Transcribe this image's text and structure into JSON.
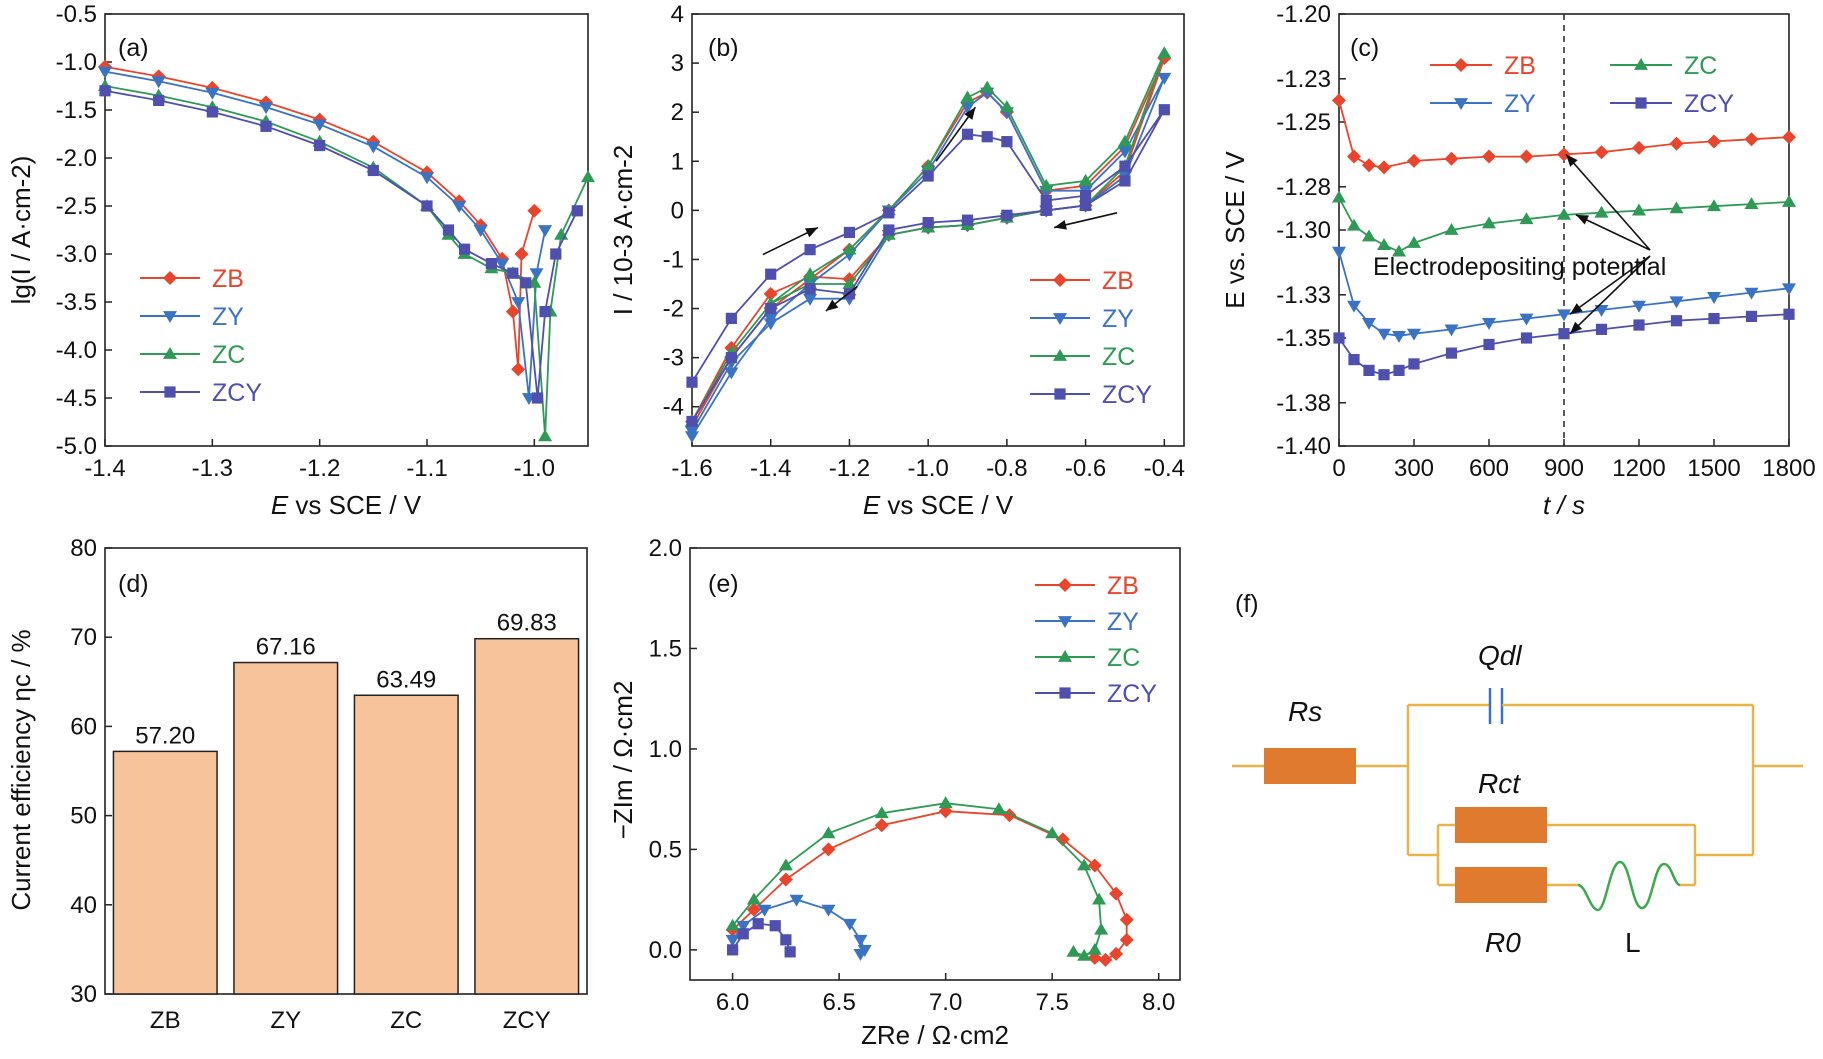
{
  "colors": {
    "ZB": "#e8452c",
    "ZY": "#3b73c4",
    "ZC": "#2e9a55",
    "ZCY": "#4f4fae",
    "bar": "#f7c39a",
    "component": "#e07a2e",
    "wire": "#e9b347",
    "inductor": "#3aaa4c"
  },
  "panels": {
    "a": {
      "label": "(a)",
      "xlabel_e": "E",
      "xlabel_rest": " vs SCE / V",
      "ylabel": "lg(I / A·cm-2)"
    },
    "b": {
      "label": "(b)",
      "xlabel_e": "E",
      "xlabel_rest": " vs SCE / V",
      "ylabel": "I / 10-3 A·cm-2"
    },
    "c": {
      "label": "(c)",
      "xlabel": "t / s",
      "ylabel": "E vs. SCE / V",
      "annotation": "Electrodepositing potential"
    },
    "d": {
      "label": "(d)",
      "ylabel": "Current efficiency ηc / %"
    },
    "e": {
      "label": "(e)",
      "xlabel": "ZRe / Ω·cm2",
      "ylabel": "−ZIm / Ω·cm2"
    },
    "f": {
      "label": "(f)",
      "Rs": "Rs",
      "Qdl": "Qdl",
      "Rct": "Rct",
      "R0": "R0",
      "L": "L"
    }
  },
  "chart_data": [
    {
      "id": "a",
      "type": "line",
      "xlim": [
        -1.4,
        -0.95
      ],
      "ylim": [
        -5.0,
        -0.5
      ],
      "xticks": [
        -1.4,
        -1.3,
        -1.2,
        -1.1,
        -1.0
      ],
      "yticks": [
        -5.0,
        -4.5,
        -4.0,
        -3.5,
        -3.0,
        -2.5,
        -2.0,
        -1.5,
        -1.0,
        -0.5
      ],
      "xtick_labels": [
        "-1.4",
        "-1.3",
        "-1.2",
        "-1.1",
        "-1.0"
      ],
      "ytick_labels": [
        "-5.0",
        "-4.5",
        "-4.0",
        "-3.5",
        "-3.0",
        "-2.5",
        "-2.0",
        "-1.5",
        "-1.0",
        "-0.5"
      ],
      "legend": [
        "ZB",
        "ZY",
        "ZC",
        "ZCY"
      ],
      "series": [
        {
          "name": "ZB",
          "x": [
            -1.4,
            -1.35,
            -1.3,
            -1.25,
            -1.2,
            -1.15,
            -1.1,
            -1.07,
            -1.05,
            -1.03,
            -1.02,
            -1.015,
            -1.012,
            -1.0
          ],
          "y": [
            -1.05,
            -1.15,
            -1.27,
            -1.42,
            -1.6,
            -1.83,
            -2.15,
            -2.45,
            -2.7,
            -3.05,
            -3.6,
            -4.2,
            -3.0,
            -2.55
          ]
        },
        {
          "name": "ZY",
          "x": [
            -1.4,
            -1.35,
            -1.3,
            -1.25,
            -1.2,
            -1.15,
            -1.1,
            -1.07,
            -1.05,
            -1.03,
            -1.015,
            -1.005,
            -0.998,
            -0.99
          ],
          "y": [
            -1.1,
            -1.2,
            -1.32,
            -1.47,
            -1.65,
            -1.88,
            -2.2,
            -2.5,
            -2.75,
            -3.1,
            -3.5,
            -4.5,
            -3.2,
            -2.75
          ]
        },
        {
          "name": "ZC",
          "x": [
            -1.4,
            -1.35,
            -1.3,
            -1.25,
            -1.2,
            -1.15,
            -1.1,
            -1.08,
            -1.065,
            -1.04,
            -1.02,
            -1.0,
            -0.99,
            -0.985,
            -0.975,
            -0.95
          ],
          "y": [
            -1.25,
            -1.35,
            -1.47,
            -1.62,
            -1.83,
            -2.1,
            -2.5,
            -2.8,
            -3.0,
            -3.15,
            -3.2,
            -3.3,
            -4.9,
            -3.6,
            -2.8,
            -2.2
          ]
        },
        {
          "name": "ZCY",
          "x": [
            -1.4,
            -1.35,
            -1.3,
            -1.25,
            -1.2,
            -1.15,
            -1.1,
            -1.08,
            -1.065,
            -1.04,
            -1.02,
            -1.008,
            -0.997,
            -0.99,
            -0.98,
            -0.96
          ],
          "y": [
            -1.3,
            -1.4,
            -1.52,
            -1.67,
            -1.87,
            -2.13,
            -2.5,
            -2.75,
            -2.95,
            -3.1,
            -3.2,
            -3.3,
            -4.5,
            -3.6,
            -3.0,
            -2.55
          ]
        }
      ]
    },
    {
      "id": "b",
      "type": "line",
      "xlim": [
        -1.6,
        -0.35
      ],
      "ylim": [
        -4.8,
        4.0
      ],
      "xticks": [
        -1.6,
        -1.4,
        -1.2,
        -1.0,
        -0.8,
        -0.6,
        -0.4
      ],
      "yticks": [
        -4,
        -3,
        -2,
        -1,
        0,
        1,
        2,
        3,
        4
      ],
      "xtick_labels": [
        "-1.6",
        "-1.4",
        "-1.2",
        "-1.0",
        "-0.8",
        "-0.6",
        "-0.4"
      ],
      "ytick_labels": [
        "-4",
        "-3",
        "-2",
        "-1",
        "0",
        "1",
        "2",
        "3",
        "4"
      ],
      "legend": [
        "ZB",
        "ZY",
        "ZC",
        "ZCY"
      ],
      "series": [
        {
          "name": "ZB",
          "x": [
            -1.6,
            -1.5,
            -1.4,
            -1.3,
            -1.2,
            -1.1,
            -1.0,
            -0.9,
            -0.85,
            -0.8,
            -0.7,
            -0.6,
            -0.5,
            -0.4,
            -0.5,
            -0.6,
            -0.7,
            -0.8,
            -0.9,
            -1.0,
            -1.1,
            -1.2,
            -1.3,
            -1.4,
            -1.5,
            -1.6
          ],
          "y": [
            -4.4,
            -3.0,
            -2.0,
            -1.4,
            -0.8,
            0.0,
            0.9,
            2.2,
            2.4,
            2.0,
            0.4,
            0.5,
            1.3,
            3.1,
            0.8,
            0.1,
            0.0,
            -0.15,
            -0.3,
            -0.35,
            -0.5,
            -1.4,
            -1.35,
            -1.7,
            -2.8,
            -4.3
          ]
        },
        {
          "name": "ZY",
          "x": [
            -1.6,
            -1.5,
            -1.4,
            -1.3,
            -1.2,
            -1.1,
            -1.0,
            -0.9,
            -0.85,
            -0.8,
            -0.7,
            -0.6,
            -0.5,
            -0.4,
            -0.5,
            -0.6,
            -0.7,
            -0.8,
            -0.9,
            -1.0,
            -1.1,
            -1.2,
            -1.3,
            -1.4,
            -1.5,
            -1.6
          ],
          "y": [
            -4.6,
            -3.3,
            -2.2,
            -1.5,
            -0.9,
            0.0,
            0.8,
            2.1,
            2.4,
            2.0,
            0.4,
            0.4,
            1.2,
            2.7,
            0.7,
            0.1,
            0.0,
            -0.15,
            -0.3,
            -0.35,
            -0.5,
            -1.8,
            -1.8,
            -2.3,
            -3.1,
            -4.5
          ]
        },
        {
          "name": "ZC",
          "x": [
            -1.6,
            -1.5,
            -1.4,
            -1.3,
            -1.2,
            -1.1,
            -1.0,
            -0.9,
            -0.85,
            -0.8,
            -0.7,
            -0.6,
            -0.5,
            -0.4,
            -0.5,
            -0.6,
            -0.7,
            -0.8,
            -0.9,
            -1.0,
            -1.1,
            -1.2,
            -1.3,
            -1.4,
            -1.5,
            -1.6
          ],
          "y": [
            -4.3,
            -2.9,
            -1.9,
            -1.3,
            -0.8,
            0.0,
            0.9,
            2.3,
            2.5,
            2.1,
            0.5,
            0.6,
            1.4,
            3.2,
            0.9,
            0.1,
            0.0,
            -0.15,
            -0.3,
            -0.35,
            -0.5,
            -1.5,
            -1.5,
            -1.9,
            -2.9,
            -4.3
          ]
        },
        {
          "name": "ZCY",
          "x": [
            -1.6,
            -1.5,
            -1.4,
            -1.3,
            -1.2,
            -1.1,
            -1.0,
            -0.9,
            -0.85,
            -0.8,
            -0.7,
            -0.6,
            -0.5,
            -0.4,
            -0.5,
            -0.6,
            -0.7,
            -0.8,
            -0.9,
            -1.0,
            -1.1,
            -1.2,
            -1.3,
            -1.4,
            -1.5,
            -1.6
          ],
          "y": [
            -3.5,
            -2.2,
            -1.3,
            -0.8,
            -0.45,
            -0.05,
            0.7,
            1.55,
            1.5,
            1.4,
            0.2,
            0.3,
            0.9,
            2.05,
            0.6,
            0.1,
            0.0,
            -0.1,
            -0.2,
            -0.25,
            -0.4,
            -1.7,
            -1.6,
            -2.0,
            -3.0,
            -4.3
          ]
        }
      ],
      "arrows": [
        {
          "from": [
            -1.42,
            -0.9
          ],
          "to": [
            -1.28,
            -0.35
          ]
        },
        {
          "from": [
            -0.98,
            1.0
          ],
          "to": [
            -0.88,
            2.1
          ]
        },
        {
          "from": [
            -0.52,
            -0.05
          ],
          "to": [
            -0.68,
            -0.35
          ]
        },
        {
          "from": [
            -1.18,
            -1.55
          ],
          "to": [
            -1.26,
            -2.05
          ]
        }
      ]
    },
    {
      "id": "c",
      "type": "line",
      "xlim": [
        0,
        1800
      ],
      "ylim": [
        -1.4,
        -1.2
      ],
      "xticks": [
        0,
        300,
        600,
        900,
        1200,
        1500,
        1800
      ],
      "yticks": [
        -1.4,
        -1.38,
        -1.35,
        -1.33,
        -1.3,
        -1.28,
        -1.25,
        -1.23,
        -1.2
      ],
      "xtick_labels": [
        "0",
        "300",
        "600",
        "900",
        "1200",
        "1500",
        "1800"
      ],
      "ytick_labels": [
        "-1.40",
        "-1.38",
        "-1.35",
        "-1.33",
        "-1.30",
        "-1.28",
        "-1.25",
        "-1.23",
        "-1.20"
      ],
      "legend": [
        "ZB",
        "ZC",
        "ZY",
        "ZCY"
      ],
      "vline_x": 900,
      "series": [
        {
          "name": "ZB",
          "x": [
            0,
            60,
            120,
            180,
            300,
            450,
            600,
            750,
            900,
            1050,
            1200,
            1350,
            1500,
            1650,
            1800
          ],
          "y": [
            -1.24,
            -1.266,
            -1.27,
            -1.271,
            -1.268,
            -1.267,
            -1.266,
            -1.266,
            -1.265,
            -1.264,
            -1.262,
            -1.26,
            -1.259,
            -1.258,
            -1.257
          ]
        },
        {
          "name": "ZC",
          "x": [
            0,
            60,
            120,
            180,
            240,
            300,
            450,
            600,
            750,
            900,
            1050,
            1200,
            1350,
            1500,
            1650,
            1800
          ],
          "y": [
            -1.285,
            -1.298,
            -1.303,
            -1.307,
            -1.31,
            -1.306,
            -1.3,
            -1.297,
            -1.295,
            -1.293,
            -1.292,
            -1.291,
            -1.29,
            -1.289,
            -1.288,
            -1.287
          ]
        },
        {
          "name": "ZY",
          "x": [
            0,
            60,
            120,
            180,
            240,
            300,
            450,
            600,
            750,
            900,
            1050,
            1200,
            1350,
            1500,
            1650,
            1800
          ],
          "y": [
            -1.31,
            -1.335,
            -1.343,
            -1.348,
            -1.349,
            -1.348,
            -1.346,
            -1.343,
            -1.341,
            -1.339,
            -1.337,
            -1.335,
            -1.333,
            -1.331,
            -1.329,
            -1.327
          ]
        },
        {
          "name": "ZCY",
          "x": [
            0,
            60,
            120,
            180,
            240,
            300,
            450,
            600,
            750,
            900,
            1050,
            1200,
            1350,
            1500,
            1650,
            1800
          ],
          "y": [
            -1.35,
            -1.36,
            -1.365,
            -1.367,
            -1.365,
            -1.362,
            -1.357,
            -1.353,
            -1.35,
            -1.348,
            -1.346,
            -1.344,
            -1.342,
            -1.341,
            -1.34,
            -1.339
          ]
        }
      ]
    },
    {
      "id": "d",
      "type": "bar",
      "categories": [
        "ZB",
        "ZY",
        "ZC",
        "ZCY"
      ],
      "values": [
        57.2,
        67.16,
        63.49,
        69.83
      ],
      "value_labels": [
        "57.20",
        "67.16",
        "63.49",
        "69.83"
      ],
      "ylim": [
        30,
        80
      ],
      "yticks": [
        30,
        40,
        50,
        60,
        70,
        80
      ],
      "ytick_labels": [
        "30",
        "40",
        "50",
        "60",
        "70",
        "80"
      ]
    },
    {
      "id": "e",
      "type": "scatter",
      "xlim": [
        5.8,
        8.1
      ],
      "ylim": [
        -0.15,
        2.0
      ],
      "xticks": [
        6.0,
        6.5,
        7.0,
        7.5,
        8.0
      ],
      "yticks": [
        0.0,
        0.5,
        1.0,
        1.5,
        2.0
      ],
      "xtick_labels": [
        "6.0",
        "6.5",
        "7.0",
        "7.5",
        "8.0"
      ],
      "ytick_labels": [
        "0.0",
        "0.5",
        "1.0",
        "1.5",
        "2.0"
      ],
      "legend": [
        "ZB",
        "ZY",
        "ZC",
        "ZCY"
      ],
      "series": [
        {
          "name": "ZB",
          "x": [
            6.0,
            6.1,
            6.25,
            6.45,
            6.7,
            7.0,
            7.3,
            7.55,
            7.7,
            7.8,
            7.85,
            7.85,
            7.8,
            7.75,
            7.7
          ],
          "y": [
            0.1,
            0.2,
            0.35,
            0.5,
            0.62,
            0.69,
            0.67,
            0.55,
            0.42,
            0.28,
            0.15,
            0.05,
            -0.02,
            -0.05,
            -0.04
          ]
        },
        {
          "name": "ZY",
          "x": [
            6.0,
            6.05,
            6.15,
            6.3,
            6.45,
            6.55,
            6.6,
            6.62,
            6.6
          ],
          "y": [
            0.05,
            0.12,
            0.2,
            0.25,
            0.2,
            0.13,
            0.05,
            0.0,
            -0.02
          ]
        },
        {
          "name": "ZC",
          "x": [
            6.0,
            6.1,
            6.25,
            6.45,
            6.7,
            7.0,
            7.25,
            7.5,
            7.65,
            7.72,
            7.73,
            7.7,
            7.65,
            7.6
          ],
          "y": [
            0.12,
            0.25,
            0.42,
            0.58,
            0.68,
            0.73,
            0.7,
            0.58,
            0.42,
            0.25,
            0.1,
            0.0,
            -0.03,
            -0.01
          ]
        },
        {
          "name": "ZCY",
          "x": [
            6.0,
            6.05,
            6.12,
            6.2,
            6.25,
            6.27
          ],
          "y": [
            0.0,
            0.08,
            0.13,
            0.12,
            0.05,
            -0.01
          ]
        }
      ]
    }
  ]
}
